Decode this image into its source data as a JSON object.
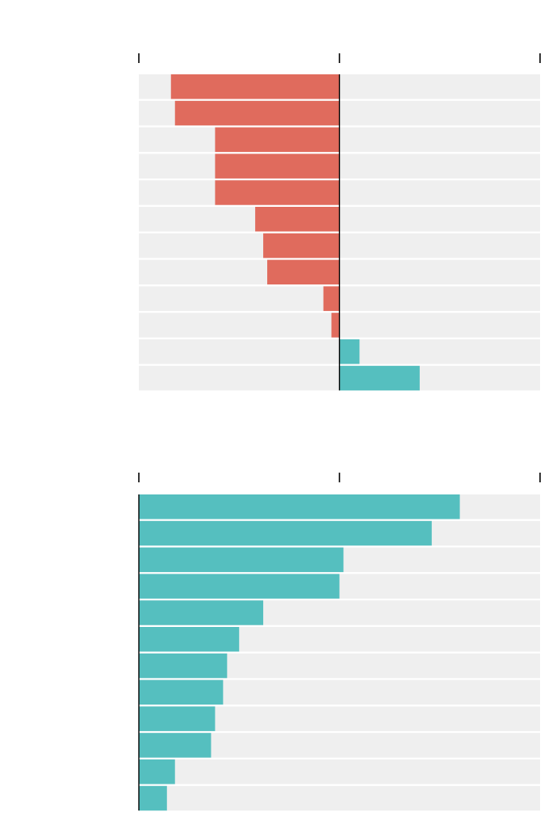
{
  "chart_data": [
    {
      "type": "bar",
      "orientation": "horizontal",
      "title": "",
      "xlabel": "",
      "ylabel": "",
      "xlim": [
        -1,
        1
      ],
      "grid": false,
      "legend": "none",
      "categories": [
        "",
        "",
        "",
        "",
        "",
        "",
        "",
        "",
        "",
        "",
        "",
        ""
      ],
      "values": [
        -0.84,
        -0.82,
        -0.62,
        -0.62,
        -0.62,
        -0.42,
        -0.38,
        -0.36,
        -0.08,
        -0.04,
        0.1,
        0.4
      ],
      "colors": {
        "negative": "#e06b5d",
        "positive": "#55bfbf",
        "track": "#efefef",
        "axis": "#000000"
      }
    },
    {
      "type": "bar",
      "orientation": "horizontal",
      "title": "",
      "xlabel": "",
      "ylabel": "",
      "xlim": [
        0,
        1
      ],
      "grid": false,
      "legend": "none",
      "categories": [
        "",
        "",
        "",
        "",
        "",
        "",
        "",
        "",
        "",
        "",
        "",
        ""
      ],
      "values": [
        0.8,
        0.73,
        0.51,
        0.5,
        0.31,
        0.25,
        0.22,
        0.21,
        0.19,
        0.18,
        0.09,
        0.07
      ],
      "colors": {
        "positive": "#55bfbf",
        "track": "#efefef",
        "axis": "#000000"
      }
    }
  ]
}
